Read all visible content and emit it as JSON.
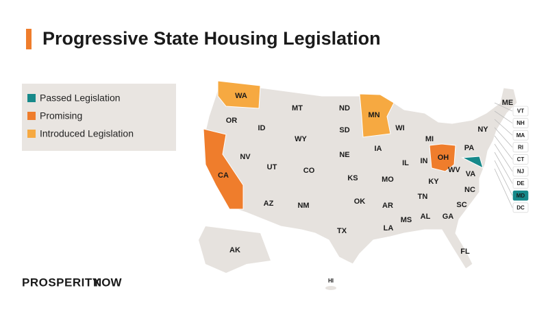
{
  "title": "Progressive State Housing Legislation",
  "legend": [
    {
      "label": "Passed Legislation",
      "color": "#17898a",
      "states": [
        "MD"
      ]
    },
    {
      "label": "Promising",
      "color": "#ef7d2c",
      "states": [
        "CA",
        "OH"
      ]
    },
    {
      "label": "Introduced Legislation",
      "color": "#f6a941",
      "states": [
        "WA",
        "MN"
      ]
    }
  ],
  "states": [
    "WA",
    "OR",
    "CA",
    "NV",
    "ID",
    "MT",
    "WY",
    "UT",
    "AZ",
    "CO",
    "NM",
    "ND",
    "SD",
    "NE",
    "KS",
    "OK",
    "TX",
    "MN",
    "IA",
    "MO",
    "AR",
    "LA",
    "WI",
    "IL",
    "MS",
    "MI",
    "IN",
    "OH",
    "KY",
    "TN",
    "AL",
    "GA",
    "FL",
    "SC",
    "NC",
    "VA",
    "WV",
    "PA",
    "NY",
    "ME",
    "AK",
    "HI"
  ],
  "small_states": [
    "VT",
    "NH",
    "MA",
    "RI",
    "CT",
    "NJ",
    "DE",
    "MD",
    "DC"
  ],
  "logo": {
    "first": "PROSPERITY",
    "second": "NOW"
  }
}
